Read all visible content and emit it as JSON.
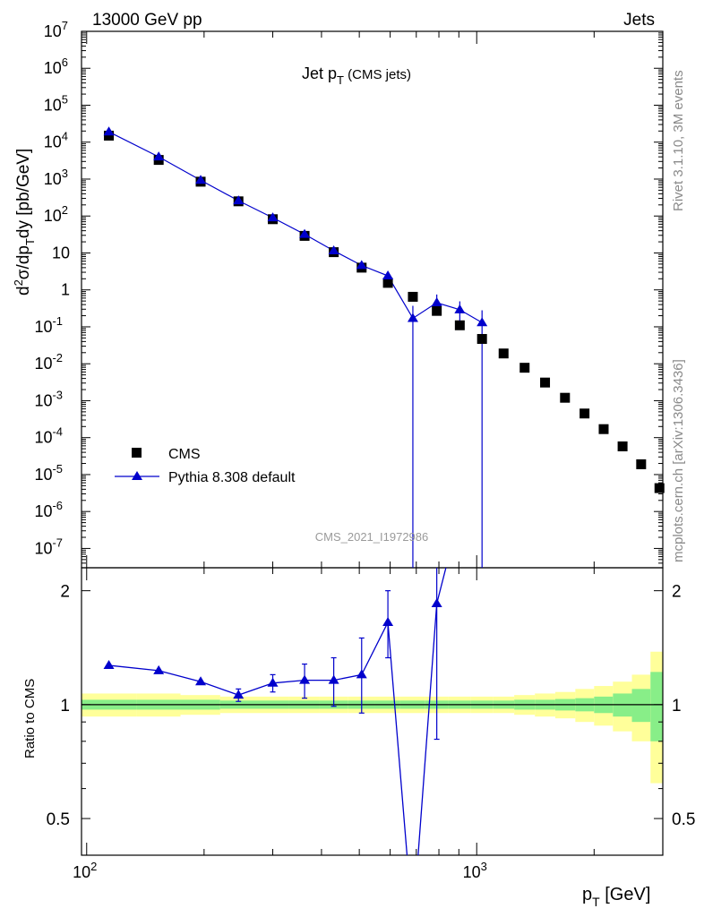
{
  "header": {
    "left": "13000 GeV pp",
    "right": "Jets"
  },
  "side_labels": {
    "rivet": "Rivet 3.1.10,  3M events",
    "mcplots": "mcplots.cern.ch [arXiv:1306.3436]"
  },
  "chart_data": [
    {
      "type": "scatter",
      "title": "Jet p_T (CMS jets)",
      "analysis_label": "CMS_2021_I1972986",
      "ylabel": "d²σ/dp_T dy [pb/GeV]",
      "y_scale": "log",
      "ylim": [
        3e-08,
        10000000.0
      ],
      "xlim": [
        97,
        3000
      ],
      "x_scale": "log",
      "legend_position": "lower-left",
      "series": [
        {
          "name": "CMS",
          "marker": "square",
          "color": "#000000",
          "x": [
            114,
            153,
            196,
            245,
            300,
            362,
            430,
            507,
            592,
            686,
            790,
            905,
            1032,
            1172,
            1327,
            1497,
            1684,
            1890,
            2116,
            2366,
            2640,
            2941
          ],
          "y": [
            15000,
            3300,
            850,
            250,
            82,
            29,
            10.5,
            4.0,
            1.55,
            0.65,
            0.27,
            0.11,
            0.047,
            0.019,
            0.0078,
            0.0031,
            0.0012,
            0.00045,
            0.00017,
            5.8e-05,
            1.9e-05,
            4.3e-06
          ]
        },
        {
          "name": "Pythia 8.308 default",
          "marker": "triangle",
          "color": "#0000cc",
          "x": [
            114,
            153,
            196,
            245,
            300,
            362,
            430,
            507,
            592,
            686,
            790,
            905,
            1032
          ],
          "y": [
            19000,
            4000,
            930,
            260,
            90,
            32,
            11.5,
            4.6,
            2.4,
            0.17,
            0.45,
            0.29,
            0.13
          ],
          "y_err_low": [
            0,
            0,
            0,
            0,
            0,
            0,
            0,
            0,
            0.5,
            0.17,
            0.22,
            0.15,
            0.13
          ],
          "y_err_high": [
            0,
            0,
            0,
            0,
            0,
            0,
            0,
            0,
            0.6,
            0.2,
            0.3,
            0.2,
            0.15
          ]
        }
      ]
    },
    {
      "type": "line",
      "ylabel": "Ratio to CMS",
      "xlabel": "p_T [GeV]",
      "x_scale": "log",
      "y_scale": "log",
      "xlim": [
        97,
        3000
      ],
      "ylim": [
        0.4,
        2.3
      ],
      "reference_line": 1,
      "band_edges": [
        97,
        134,
        174,
        220,
        272,
        330,
        395,
        467,
        548,
        637,
        736,
        846,
        966,
        1100,
        1248,
        1410,
        1590,
        1790,
        2000,
        2235,
        2500,
        2790,
        3000
      ],
      "band_green_low": [
        0.97,
        0.97,
        0.97,
        0.975,
        0.975,
        0.975,
        0.975,
        0.975,
        0.975,
        0.975,
        0.975,
        0.975,
        0.975,
        0.975,
        0.97,
        0.97,
        0.965,
        0.96,
        0.95,
        0.93,
        0.9,
        0.8
      ],
      "band_green_high": [
        1.03,
        1.03,
        1.03,
        1.025,
        1.025,
        1.025,
        1.025,
        1.025,
        1.025,
        1.025,
        1.025,
        1.025,
        1.025,
        1.025,
        1.03,
        1.03,
        1.035,
        1.04,
        1.05,
        1.07,
        1.1,
        1.22
      ],
      "band_yellow_low": [
        0.93,
        0.93,
        0.94,
        0.95,
        0.95,
        0.95,
        0.95,
        0.95,
        0.95,
        0.95,
        0.95,
        0.95,
        0.95,
        0.95,
        0.94,
        0.93,
        0.92,
        0.9,
        0.88,
        0.85,
        0.8,
        0.62
      ],
      "band_yellow_high": [
        1.07,
        1.07,
        1.06,
        1.05,
        1.05,
        1.05,
        1.05,
        1.05,
        1.05,
        1.05,
        1.05,
        1.05,
        1.05,
        1.05,
        1.06,
        1.07,
        1.08,
        1.1,
        1.12,
        1.15,
        1.2,
        1.38
      ],
      "series": [
        {
          "name": "Pythia 8.308 default",
          "color": "#0000cc",
          "x": [
            114,
            153,
            196,
            245,
            300,
            362,
            430,
            507,
            592,
            686,
            790,
            905
          ],
          "y": [
            1.27,
            1.23,
            1.15,
            1.06,
            1.14,
            1.16,
            1.16,
            1.2,
            1.65,
            0.26,
            1.85,
            3.2
          ],
          "y_err_low": [
            0,
            0,
            0,
            0.04,
            0.06,
            0.12,
            0.17,
            0.25,
            0.32,
            0,
            1.04,
            0
          ],
          "y_err_high": [
            0,
            0,
            0,
            0.04,
            0.06,
            0.12,
            0.17,
            0.3,
            0.35,
            0,
            0.6,
            0
          ]
        }
      ]
    }
  ],
  "axes": {
    "main_yticks": [
      {
        "v": 10000000.0,
        "l": "10^7"
      },
      {
        "v": 1000000.0,
        "l": "10^6"
      },
      {
        "v": 100000.0,
        "l": "10^5"
      },
      {
        "v": 10000.0,
        "l": "10^4"
      },
      {
        "v": 1000.0,
        "l": "10^3"
      },
      {
        "v": 100.0,
        "l": "10^2"
      },
      {
        "v": 10,
        "l": "10"
      },
      {
        "v": 1,
        "l": "1"
      },
      {
        "v": 0.1,
        "l": "10^-1"
      },
      {
        "v": 0.01,
        "l": "10^-2"
      },
      {
        "v": 0.001,
        "l": "10^-3"
      },
      {
        "v": 0.0001,
        "l": "10^-4"
      },
      {
        "v": 1e-05,
        "l": "10^-5"
      },
      {
        "v": 1e-06,
        "l": "10^-6"
      },
      {
        "v": 1e-07,
        "l": "10^-7"
      }
    ],
    "ratio_yticks": [
      {
        "v": 2,
        "l": "2"
      },
      {
        "v": 1,
        "l": "1"
      },
      {
        "v": 0.5,
        "l": "0.5"
      }
    ],
    "xticks": [
      {
        "v": 100,
        "l": "10^2"
      },
      {
        "v": 1000,
        "l": "10^3"
      }
    ]
  }
}
